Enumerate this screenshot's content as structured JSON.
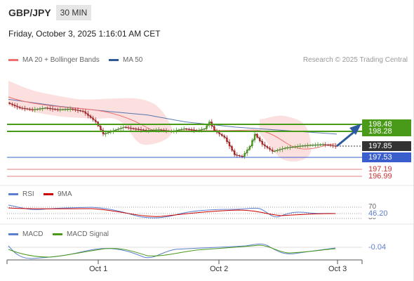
{
  "header": {
    "symbol": "GBP/JPY",
    "timeframe": "30 MIN",
    "datetime": "Friday, October 3, 2025 1:16:01 AM CET"
  },
  "legend": {
    "main": [
      {
        "label": "MA 20 + Bollinger Bands",
        "color": "#f07070"
      },
      {
        "label": "MA 50",
        "color": "#2d5a9e"
      }
    ],
    "research": "Research © 2025 Trading Central",
    "rsi": [
      {
        "label": "RSI",
        "color": "#5b7fce"
      },
      {
        "label": "9MA",
        "color": "#cc0000"
      }
    ],
    "macd": [
      {
        "label": "MACD",
        "color": "#5b7fce"
      },
      {
        "label": "MACD Signal",
        "color": "#4a9a1a"
      }
    ]
  },
  "colors": {
    "resistance": "#4a9a1a",
    "support": "#3a5fcd",
    "target": "#e08080",
    "arrow": "#2d5a9e",
    "up": "#4a9a1a",
    "down": "#b22222"
  },
  "levels": {
    "current": "197.85",
    "resistance1": "198.48",
    "resistance2": "198.28",
    "support1": "197.53",
    "target1": "197.19",
    "target2": "196.99"
  },
  "rsi_panel": {
    "upper": "70",
    "value": "46.20",
    "lower": "30"
  },
  "macd_panel": {
    "value": "-0.04"
  },
  "chart_data": {
    "type": "candlestick",
    "x_labels": [
      "Oct 1",
      "Oct 2",
      "Oct 3"
    ],
    "y_levels": [
      198.48,
      198.28,
      197.85,
      197.53,
      197.19,
      196.99
    ],
    "ma50": [
      [
        0,
        199.2
      ],
      [
        20,
        199.0
      ],
      [
        40,
        198.85
      ],
      [
        55,
        198.75
      ],
      [
        70,
        198.55
      ],
      [
        90,
        198.4
      ],
      [
        110,
        198.3
      ],
      [
        130,
        198.2
      ]
    ],
    "price": [
      [
        0,
        199.1
      ],
      [
        5,
        198.95
      ],
      [
        10,
        198.9
      ],
      [
        15,
        198.95
      ],
      [
        20,
        198.9
      ],
      [
        25,
        198.92
      ],
      [
        30,
        198.85
      ],
      [
        35,
        198.55
      ],
      [
        38,
        198.2
      ],
      [
        42,
        198.3
      ],
      [
        46,
        198.4
      ],
      [
        50,
        198.35
      ],
      [
        55,
        198.3
      ],
      [
        60,
        198.32
      ],
      [
        65,
        198.28
      ],
      [
        70,
        198.35
      ],
      [
        75,
        198.3
      ],
      [
        78,
        198.35
      ],
      [
        80,
        198.55
      ],
      [
        82,
        198.3
      ],
      [
        86,
        198.1
      ],
      [
        90,
        197.6
      ],
      [
        93,
        197.55
      ],
      [
        96,
        197.85
      ],
      [
        98,
        198.2
      ],
      [
        101,
        197.9
      ],
      [
        105,
        197.7
      ],
      [
        110,
        197.8
      ],
      [
        115,
        197.85
      ],
      [
        120,
        197.88
      ],
      [
        125,
        197.9
      ],
      [
        130,
        197.85
      ]
    ],
    "projection": {
      "from": [
        130,
        197.85
      ],
      "to": [
        140,
        198.48
      ]
    },
    "rsi": {
      "levels": [
        70,
        50,
        30
      ],
      "current": 46.2
    },
    "macd": {
      "current": -0.04
    }
  }
}
